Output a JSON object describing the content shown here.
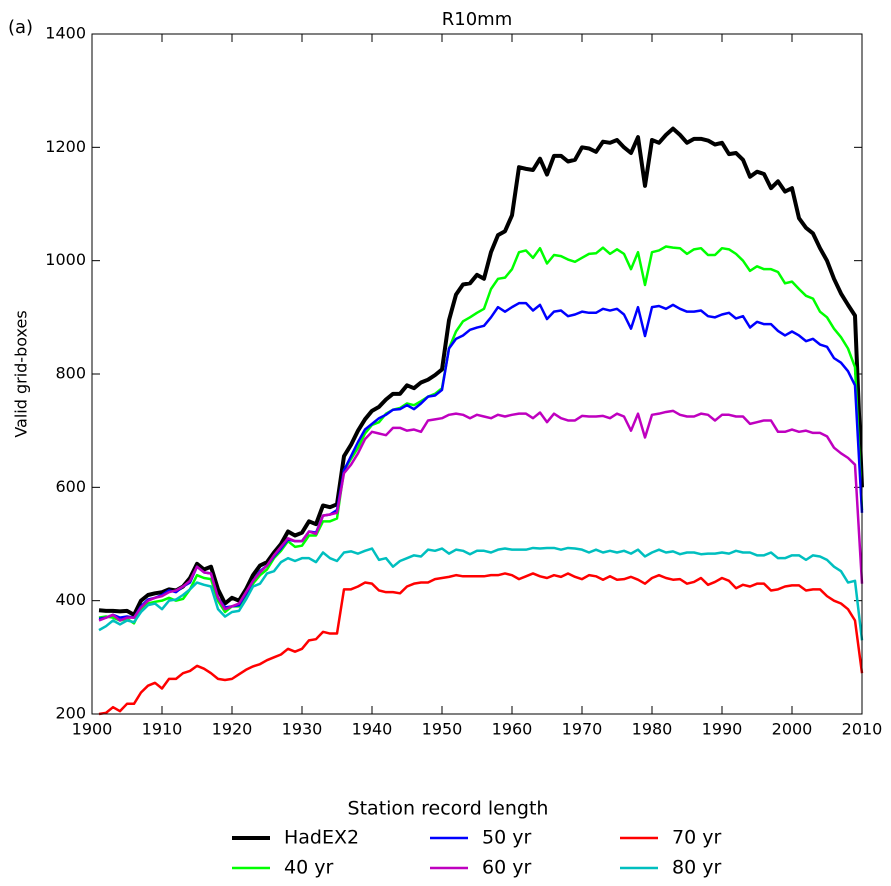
{
  "chart_data": {
    "type": "line",
    "panel_label": "(a)",
    "title": "R10mm",
    "ylabel": "Valid grid-boxes",
    "legend_title": "Station record length",
    "legend": "lower center",
    "legend_columns": 3,
    "xlim": [
      1900,
      2010
    ],
    "ylim": [
      200,
      1400
    ],
    "xticks": [
      1900,
      1910,
      1920,
      1930,
      1940,
      1950,
      1960,
      1970,
      1980,
      1990,
      2000,
      2010
    ],
    "yticks": [
      200,
      400,
      600,
      800,
      1000,
      1200,
      1400
    ],
    "x": [
      1901,
      1902,
      1903,
      1904,
      1905,
      1906,
      1907,
      1908,
      1909,
      1910,
      1911,
      1912,
      1913,
      1914,
      1915,
      1916,
      1917,
      1918,
      1919,
      1920,
      1921,
      1922,
      1923,
      1924,
      1925,
      1926,
      1927,
      1928,
      1929,
      1930,
      1931,
      1932,
      1933,
      1934,
      1935,
      1936,
      1937,
      1938,
      1939,
      1940,
      1941,
      1942,
      1943,
      1944,
      1945,
      1946,
      1947,
      1948,
      1949,
      1950,
      1951,
      1952,
      1953,
      1954,
      1955,
      1956,
      1957,
      1958,
      1959,
      1960,
      1961,
      1962,
      1963,
      1964,
      1965,
      1966,
      1967,
      1968,
      1969,
      1970,
      1971,
      1972,
      1973,
      1974,
      1975,
      1976,
      1977,
      1978,
      1979,
      1980,
      1981,
      1982,
      1983,
      1984,
      1985,
      1986,
      1987,
      1988,
      1989,
      1990,
      1991,
      1992,
      1993,
      1994,
      1995,
      1996,
      1997,
      1998,
      1999,
      2000,
      2001,
      2002,
      2003,
      2004,
      2005,
      2006,
      2007,
      2008,
      2009,
      2010
    ],
    "series": [
      {
        "name": "HadEX2",
        "color": "#000000",
        "width": 4,
        "values": [
          383,
          382,
          382,
          381,
          382,
          375,
          400,
          410,
          413,
          415,
          420,
          418,
          425,
          440,
          465,
          455,
          460,
          420,
          395,
          405,
          400,
          420,
          445,
          462,
          468,
          485,
          500,
          522,
          515,
          520,
          540,
          535,
          568,
          565,
          570,
          655,
          675,
          700,
          720,
          735,
          742,
          755,
          765,
          765,
          780,
          775,
          785,
          790,
          798,
          808,
          895,
          940,
          958,
          960,
          975,
          968,
          1015,
          1045,
          1052,
          1080,
          1165,
          1162,
          1160,
          1180,
          1152,
          1185,
          1185,
          1175,
          1178,
          1200,
          1198,
          1192,
          1210,
          1208,
          1213,
          1200,
          1190,
          1218,
          1132,
          1213,
          1208,
          1222,
          1233,
          1222,
          1208,
          1215,
          1215,
          1212,
          1205,
          1208,
          1188,
          1190,
          1178,
          1148,
          1157,
          1153,
          1128,
          1140,
          1122,
          1128,
          1075,
          1058,
          1048,
          1022,
          1000,
          968,
          942,
          922,
          903,
          600
        ]
      },
      {
        "name": "40 yr",
        "color": "#00ff00",
        "width": 2.5,
        "values": [
          370,
          372,
          370,
          365,
          368,
          360,
          385,
          395,
          398,
          400,
          405,
          400,
          403,
          420,
          445,
          440,
          438,
          400,
          380,
          390,
          390,
          410,
          430,
          445,
          455,
          475,
          488,
          505,
          495,
          497,
          515,
          515,
          540,
          540,
          545,
          630,
          650,
          670,
          695,
          710,
          715,
          730,
          737,
          740,
          748,
          745,
          752,
          760,
          765,
          775,
          845,
          875,
          893,
          900,
          908,
          915,
          950,
          968,
          970,
          985,
          1015,
          1018,
          1005,
          1022,
          995,
          1010,
          1008,
          1002,
          998,
          1005,
          1012,
          1013,
          1023,
          1012,
          1020,
          1012,
          985,
          1015,
          957,
          1015,
          1018,
          1025,
          1023,
          1022,
          1012,
          1020,
          1022,
          1010,
          1010,
          1022,
          1020,
          1012,
          1000,
          982,
          990,
          985,
          985,
          980,
          960,
          963,
          950,
          938,
          933,
          910,
          900,
          880,
          865,
          845,
          812,
          560
        ]
      },
      {
        "name": "50 yr",
        "color": "#0000ff",
        "width": 2.5,
        "values": [
          368,
          370,
          375,
          370,
          372,
          370,
          390,
          402,
          405,
          410,
          418,
          415,
          425,
          432,
          460,
          450,
          448,
          405,
          388,
          390,
          392,
          412,
          435,
          452,
          462,
          478,
          492,
          508,
          505,
          505,
          522,
          520,
          550,
          552,
          560,
          630,
          655,
          680,
          702,
          712,
          722,
          728,
          737,
          738,
          745,
          738,
          748,
          760,
          762,
          772,
          845,
          862,
          868,
          878,
          882,
          885,
          900,
          918,
          910,
          918,
          925,
          925,
          912,
          922,
          897,
          910,
          912,
          902,
          905,
          910,
          908,
          908,
          915,
          912,
          915,
          905,
          880,
          918,
          867,
          918,
          920,
          915,
          922,
          915,
          910,
          910,
          912,
          902,
          900,
          905,
          908,
          898,
          902,
          882,
          892,
          888,
          888,
          876,
          868,
          875,
          868,
          858,
          862,
          852,
          848,
          828,
          820,
          805,
          780,
          555
        ]
      },
      {
        "name": "60 yr",
        "color": "#bf00bf",
        "width": 2.5,
        "values": [
          365,
          370,
          375,
          365,
          370,
          370,
          388,
          400,
          405,
          408,
          415,
          418,
          425,
          435,
          460,
          450,
          448,
          405,
          385,
          390,
          395,
          415,
          435,
          450,
          462,
          480,
          495,
          510,
          505,
          505,
          522,
          518,
          550,
          552,
          555,
          625,
          640,
          660,
          685,
          698,
          695,
          692,
          705,
          705,
          700,
          702,
          698,
          718,
          720,
          722,
          728,
          730,
          728,
          722,
          728,
          725,
          722,
          728,
          725,
          728,
          730,
          730,
          722,
          732,
          715,
          730,
          722,
          718,
          718,
          726,
          725,
          725,
          726,
          722,
          730,
          725,
          700,
          730,
          688,
          728,
          730,
          733,
          735,
          728,
          725,
          725,
          730,
          728,
          718,
          728,
          728,
          725,
          725,
          712,
          715,
          718,
          718,
          698,
          698,
          702,
          698,
          700,
          696,
          696,
          690,
          670,
          660,
          652,
          640,
          430
        ]
      },
      {
        "name": "70 yr",
        "color": "#ff0000",
        "width": 2.5,
        "values": [
          200,
          202,
          212,
          205,
          218,
          218,
          238,
          250,
          255,
          245,
          262,
          262,
          272,
          276,
          285,
          280,
          272,
          262,
          260,
          262,
          270,
          278,
          284,
          288,
          295,
          300,
          305,
          315,
          310,
          315,
          330,
          332,
          345,
          342,
          342,
          420,
          420,
          425,
          432,
          430,
          418,
          415,
          415,
          413,
          425,
          430,
          432,
          432,
          438,
          440,
          442,
          445,
          443,
          443,
          443,
          443,
          445,
          445,
          448,
          445,
          438,
          443,
          448,
          443,
          440,
          445,
          442,
          448,
          442,
          438,
          445,
          443,
          437,
          443,
          437,
          438,
          442,
          437,
          430,
          440,
          445,
          440,
          437,
          438,
          430,
          433,
          440,
          428,
          433,
          440,
          435,
          422,
          428,
          425,
          430,
          430,
          418,
          420,
          425,
          427,
          427,
          418,
          420,
          420,
          408,
          400,
          395,
          385,
          365,
          272
        ]
      },
      {
        "name": "80 yr",
        "color": "#00bfbf",
        "width": 2.5,
        "values": [
          348,
          355,
          365,
          358,
          365,
          362,
          380,
          392,
          395,
          385,
          400,
          402,
          410,
          420,
          432,
          428,
          425,
          385,
          372,
          380,
          382,
          402,
          425,
          430,
          448,
          452,
          468,
          475,
          470,
          475,
          475,
          468,
          485,
          475,
          470,
          485,
          487,
          483,
          488,
          492,
          472,
          475,
          460,
          470,
          475,
          480,
          478,
          490,
          488,
          492,
          483,
          490,
          488,
          482,
          488,
          488,
          485,
          490,
          492,
          490,
          490,
          490,
          493,
          492,
          493,
          493,
          490,
          493,
          492,
          490,
          485,
          490,
          485,
          488,
          485,
          488,
          483,
          490,
          478,
          485,
          490,
          485,
          487,
          482,
          485,
          485,
          482,
          483,
          483,
          485,
          483,
          488,
          485,
          485,
          480,
          480,
          485,
          475,
          475,
          480,
          480,
          472,
          480,
          478,
          472,
          460,
          452,
          432,
          435,
          330
        ]
      }
    ]
  }
}
